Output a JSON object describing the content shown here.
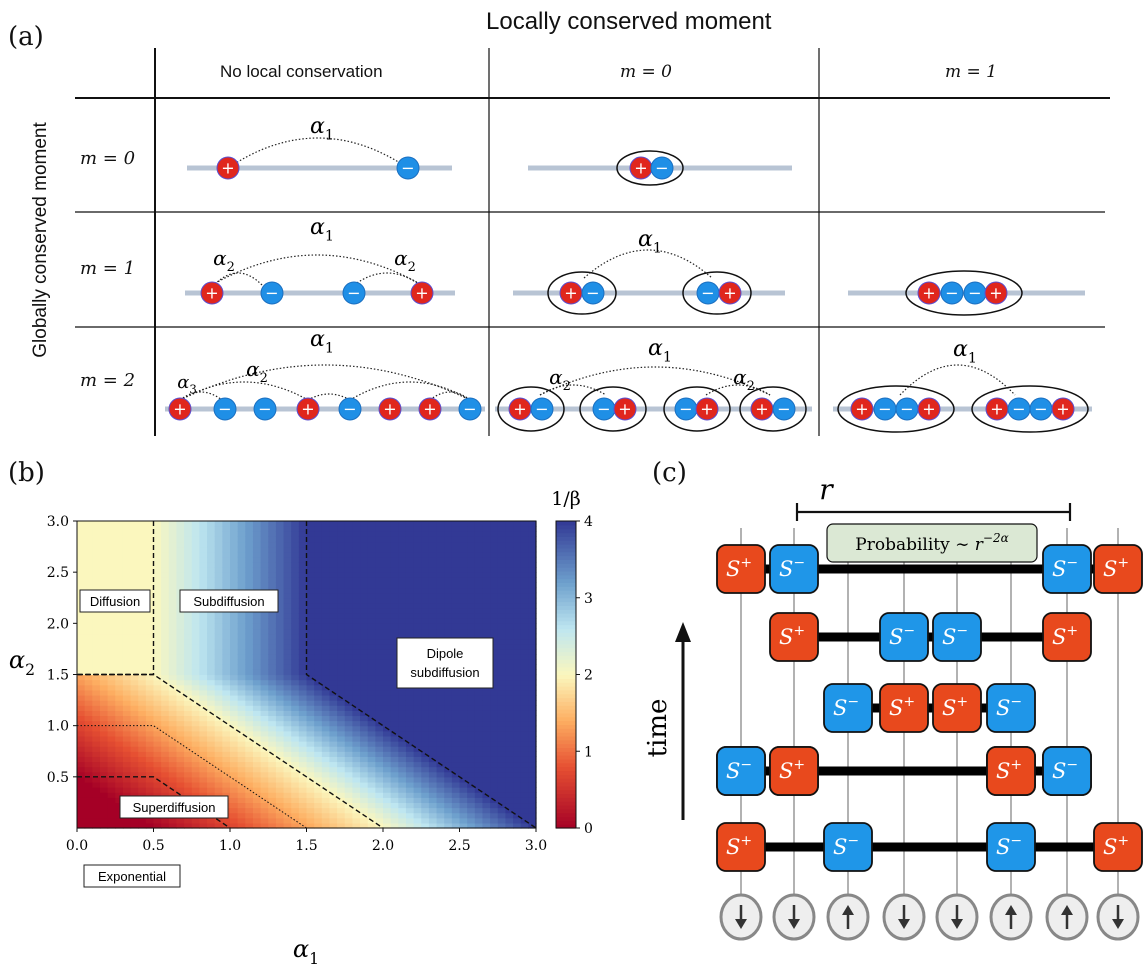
{
  "panel_a": {
    "label": "(a)",
    "col_group_header": "Locally conserved moment",
    "row_group_header": "Globally conserved moment",
    "col_headers": [
      "No local conservation",
      "m = 0",
      "m = 1"
    ],
    "row_headers": [
      "m = 0",
      "m = 1",
      "m = 2"
    ],
    "arc_labels": {
      "a1": "α1",
      "a2": "α2",
      "a3": "α3"
    },
    "plus_glyph": "+",
    "minus_glyph": "−"
  },
  "panel_b": {
    "label": "(b)",
    "colorbar_title": "1/β",
    "colorbar_ticks": [
      "0",
      "1",
      "2",
      "3",
      "4"
    ],
    "regions": [
      "Diffusion",
      "Subdiffusion",
      "Dipole subdiffusion",
      "Superdiffusion",
      "Exponential"
    ],
    "colors": {
      "exp_red": "#a50026",
      "mid_yellow": "#fbf7be",
      "dipole_blue": "#323995"
    }
  },
  "panel_c": {
    "label": "(c)",
    "r_label": "r",
    "probability_label": "Probability ∼ r^−2α",
    "time_label": "time",
    "op_plus": "S+",
    "op_minus": "S−",
    "spins": [
      "down",
      "down",
      "up",
      "down",
      "down",
      "up",
      "up",
      "down"
    ],
    "colors": {
      "plus": "#e8491d",
      "minus": "#1f96e8",
      "prob_bg": "#dbe8d4"
    }
  },
  "chart_data": {
    "type": "heatmap",
    "title": "",
    "xlabel": "α1",
    "ylabel": "α2",
    "xlim": [
      0.0,
      3.0
    ],
    "ylim": [
      0.0,
      3.0
    ],
    "x_ticks": [
      "0.0",
      "0.5",
      "1.0",
      "1.5",
      "2.0",
      "2.5",
      "3.0"
    ],
    "y_ticks": [
      "0.5",
      "1.0",
      "1.5",
      "2.0",
      "2.5",
      "3.0"
    ],
    "colorbar": {
      "label": "1/β",
      "range": [
        0,
        4
      ]
    },
    "region_labels": [
      "Diffusion",
      "Subdiffusion",
      "Dipole subdiffusion",
      "Superdiffusion",
      "Exponential"
    ]
  }
}
